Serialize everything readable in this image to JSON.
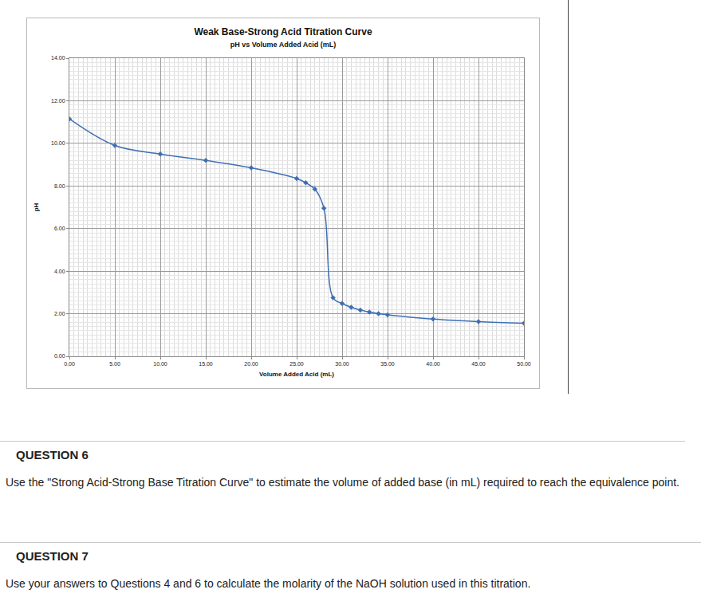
{
  "chart_data": {
    "type": "line",
    "title": "Weak Base-Strong Acid Titration Curve",
    "subtitle": "pH vs Volume Added Acid (mL)",
    "x_label": "Volume Added Acid (mL)",
    "y_label": "pH",
    "x": [
      0,
      5,
      10,
      15,
      20,
      25,
      26,
      27,
      28,
      29,
      30,
      31,
      32,
      33,
      34,
      35,
      40,
      45,
      50
    ],
    "series": [
      {
        "name": "pH",
        "color": "#3f6fb5",
        "values": [
          11.15,
          9.9,
          9.5,
          9.2,
          8.85,
          8.35,
          8.15,
          7.85,
          6.95,
          2.75,
          2.48,
          2.3,
          2.17,
          2.08,
          2.0,
          1.95,
          1.75,
          1.63,
          1.55
        ]
      }
    ],
    "marker": "diamond",
    "line_style": "smooth",
    "xlim": [
      0,
      50
    ],
    "xticks": [
      {
        "value": 0,
        "label": "0.00"
      },
      {
        "value": 5,
        "label": "5.00"
      },
      {
        "value": 10,
        "label": "10.00"
      },
      {
        "value": 15,
        "label": "15.00"
      },
      {
        "value": 20,
        "label": "20.00"
      },
      {
        "value": 25,
        "label": "25.00"
      },
      {
        "value": 30,
        "label": "30.00"
      },
      {
        "value": 35,
        "label": "35.00"
      },
      {
        "value": 40,
        "label": "40.00"
      },
      {
        "value": 45,
        "label": "45.00"
      },
      {
        "value": 50,
        "label": "50.00"
      }
    ],
    "ylim": [
      0,
      14
    ],
    "yticks": [
      {
        "value": 0,
        "label": "0.00"
      },
      {
        "value": 2,
        "label": "2.00"
      },
      {
        "value": 4,
        "label": "4.00"
      },
      {
        "value": 6,
        "label": "6.00"
      },
      {
        "value": 8,
        "label": "8.00"
      },
      {
        "value": 10,
        "label": "10.00"
      },
      {
        "value": 12,
        "label": "12.00"
      },
      {
        "value": 14,
        "label": "14.00"
      }
    ],
    "grid": true
  },
  "questions": [
    {
      "title": "QUESTION 6",
      "text": "Use the \"Strong Acid-Strong Base Titration Curve\" to estimate the volume of added base (in mL) required to reach the equivalence point."
    },
    {
      "title": "QUESTION 7",
      "text": "Use your answers to Questions 4 and 6 to calculate the molarity of the NaOH solution used in this titration."
    }
  ]
}
